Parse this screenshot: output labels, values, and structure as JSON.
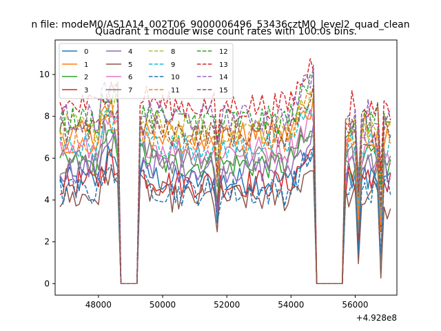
{
  "figure": {
    "suptitle": "n file: modeM0/AS1A14_002T06_9000006496_53436cztM0_level2_quad_clean",
    "offset_label": "+4.928e8"
  },
  "chart_data": {
    "type": "line",
    "title": "Quadrant 1 module wise count rates with 100.0s bins.",
    "xlabel": "",
    "ylabel": "",
    "x_offset": 492800000,
    "xlim": [
      46650,
      57300
    ],
    "ylim": [
      -0.55,
      11.65
    ],
    "x_ticks": [
      48000,
      50000,
      52000,
      54000,
      56000
    ],
    "x_tick_labels": [
      "48000",
      "50000",
      "52000",
      "54000",
      "56000"
    ],
    "y_ticks": [
      0,
      2,
      4,
      6,
      8,
      10
    ],
    "y_tick_labels": [
      "0",
      "2",
      "4",
      "6",
      "8",
      "10"
    ],
    "bin_seconds": 100,
    "x_start": 46800,
    "x_end": 57100,
    "zero_gaps": [
      [
        48700,
        49200
      ],
      [
        54800,
        55600
      ]
    ],
    "dips": [
      {
        "x": 51700,
        "drop": 1.3
      },
      {
        "x": 56100,
        "drop": 3.0
      },
      {
        "x": 56800,
        "drop": 3.6
      }
    ],
    "legend_position": "upper left",
    "series": [
      {
        "name": "0",
        "color": "#1f77b4",
        "dash": "solid",
        "base": 4.9
      },
      {
        "name": "1",
        "color": "#ff7f0e",
        "dash": "solid",
        "base": 7.1
      },
      {
        "name": "2",
        "color": "#2ca02c",
        "dash": "solid",
        "base": 5.7
      },
      {
        "name": "3",
        "color": "#d62728",
        "dash": "solid",
        "base": 4.8
      },
      {
        "name": "4",
        "color": "#9467bd",
        "dash": "solid",
        "base": 5.5
      },
      {
        "name": "5",
        "color": "#8c564b",
        "dash": "solid",
        "base": 4.1
      },
      {
        "name": "6",
        "color": "#e377c2",
        "dash": "solid",
        "base": 6.4
      },
      {
        "name": "7",
        "color": "#7f7f7f",
        "dash": "solid",
        "base": 5.9
      },
      {
        "name": "8",
        "color": "#bcbd22",
        "dash": "dashed",
        "base": 7.4
      },
      {
        "name": "9",
        "color": "#17becf",
        "dash": "dashed",
        "base": 6.6
      },
      {
        "name": "10",
        "color": "#1f77b4",
        "dash": "dashed",
        "base": 4.4
      },
      {
        "name": "11",
        "color": "#ff7f0e",
        "dash": "dashed",
        "base": 6.9
      },
      {
        "name": "12",
        "color": "#2ca02c",
        "dash": "dashed",
        "base": 7.8
      },
      {
        "name": "13",
        "color": "#d62728",
        "dash": "dashed",
        "base": 8.5
      },
      {
        "name": "14",
        "color": "#9467bd",
        "dash": "dashed",
        "base": 7.9
      },
      {
        "name": "15",
        "color": "#8c564b",
        "dash": "dashed",
        "base": 7.2
      }
    ]
  }
}
